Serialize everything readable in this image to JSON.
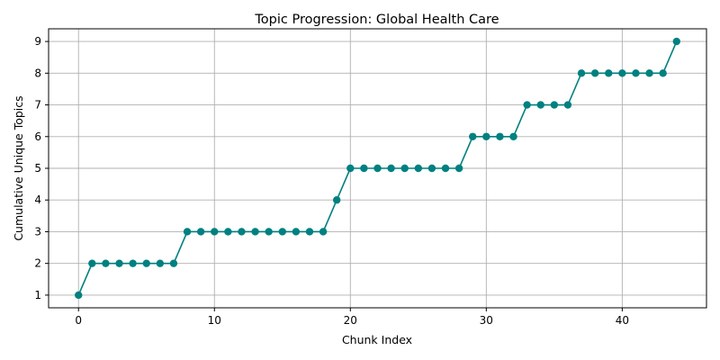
{
  "chart_data": {
    "type": "line",
    "title": "Topic Progression: Global Health Care",
    "xlabel": "Chunk Index",
    "ylabel": "Cumulative Unique Topics",
    "xlim": [
      -2.2,
      46.2
    ],
    "ylim": [
      0.6,
      9.4
    ],
    "xticks": [
      0,
      10,
      20,
      30,
      40
    ],
    "yticks": [
      1,
      2,
      3,
      4,
      5,
      6,
      7,
      8,
      9
    ],
    "grid": true,
    "color": "#008080",
    "series": [
      {
        "x": [
          0,
          1,
          2,
          3,
          4,
          5,
          6,
          7,
          8,
          9,
          10,
          11,
          12,
          13,
          14,
          15,
          16,
          17,
          18,
          19,
          20,
          21,
          22,
          23,
          24,
          25,
          26,
          27,
          28,
          29,
          30,
          31,
          32,
          33,
          34,
          35,
          36,
          37,
          38,
          39,
          40,
          41,
          42,
          43,
          44
        ],
        "values": [
          1,
          2,
          2,
          2,
          2,
          2,
          2,
          2,
          3,
          3,
          3,
          3,
          3,
          3,
          3,
          3,
          3,
          3,
          3,
          4,
          5,
          5,
          5,
          5,
          5,
          5,
          5,
          5,
          5,
          6,
          6,
          6,
          6,
          7,
          7,
          7,
          7,
          8,
          8,
          8,
          8,
          8,
          8,
          8,
          9
        ]
      }
    ]
  }
}
